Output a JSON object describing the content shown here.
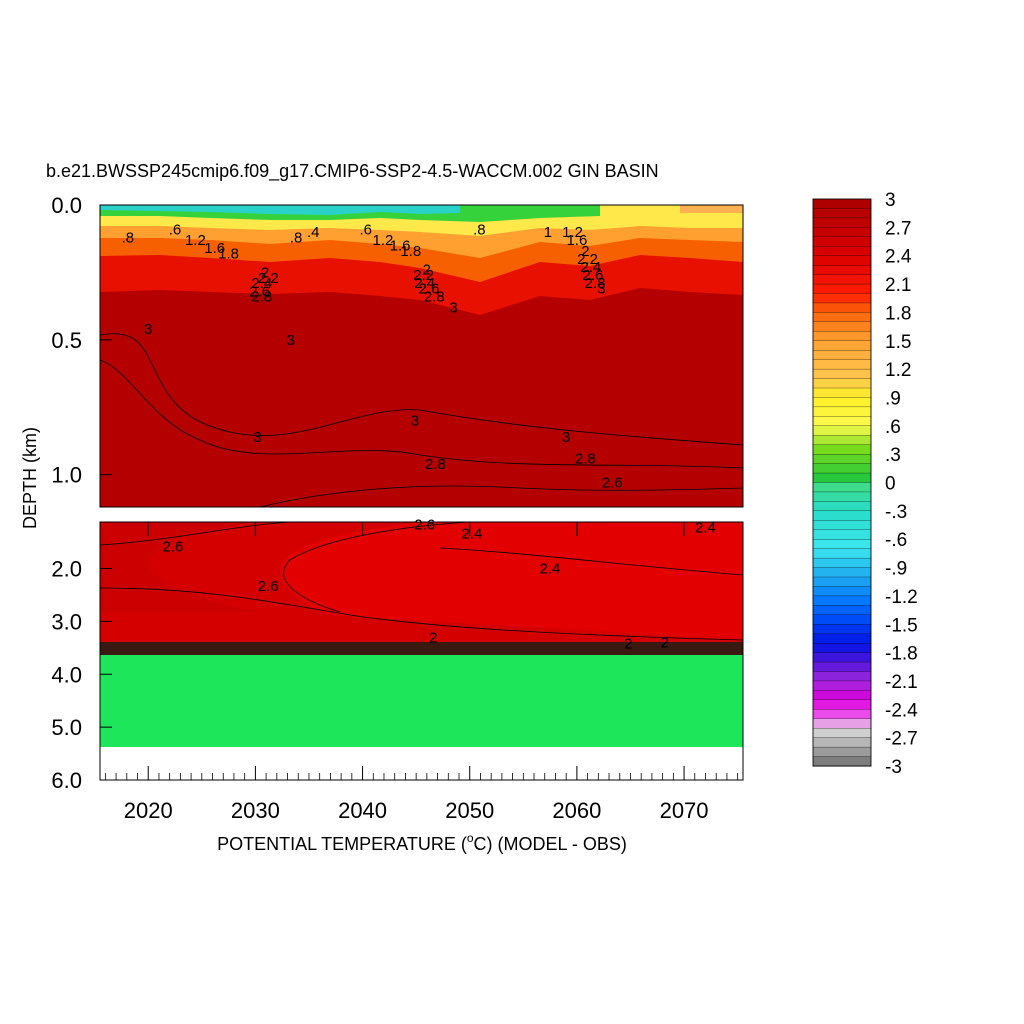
{
  "chart_data": {
    "type": "heatmap",
    "title": "b.e21.BWSSP245cmip6.f09_g17.CMIP6-SSP2-4.5-WACCM.002 GIN BASIN",
    "xlabel_pre": "POTENTIAL TEMPERATURE (",
    "xlabel_sup": "o",
    "xlabel_post": "C) (MODEL - OBS)",
    "ylabel": "DEPTH (km)",
    "xlim": [
      2015.5,
      2075.5
    ],
    "x_ticks": [
      "2020",
      "2030",
      "2040",
      "2050",
      "2060",
      "2070"
    ],
    "upper_panel": {
      "ylim": [
        0.0,
        1.12
      ],
      "y_ticks": [
        "0.0",
        "0.5",
        "1.0"
      ],
      "y_tick_values": [
        0.0,
        0.5,
        1.0
      ]
    },
    "lower_panel": {
      "ylim": [
        1.12,
        6.0
      ],
      "y_ticks": [
        "2.0",
        "3.0",
        "4.0",
        "5.0",
        "6.0"
      ],
      "y_tick_values": [
        2.0,
        3.0,
        4.0,
        5.0,
        6.0
      ]
    },
    "colorbar": {
      "range": [
        -3,
        3
      ],
      "step": 0.1,
      "labels": [
        "3",
        "2.7",
        "2.4",
        "2.1",
        "1.8",
        "1.5",
        "1.2",
        ".9",
        ".6",
        ".3",
        "0",
        "-.3",
        "-.6",
        "-.9",
        "-1.2",
        "-1.5",
        "-1.8",
        "-2.1",
        "-2.4",
        "-2.7",
        "-3"
      ]
    },
    "contour_labels": [
      {
        "text": ".8",
        "x": 2018.1,
        "depth": 0.12
      },
      {
        "text": ".6",
        "x": 2022.5,
        "depth": 0.09
      },
      {
        "text": "1.2",
        "x": 2024.4,
        "depth": 0.13
      },
      {
        "text": "1.6",
        "x": 2026.2,
        "depth": 0.16
      },
      {
        "text": "1.8",
        "x": 2027.5,
        "depth": 0.18
      },
      {
        "text": ".8",
        "x": 2033.8,
        "depth": 0.12
      },
      {
        "text": ".4",
        "x": 2035.4,
        "depth": 0.1
      },
      {
        "text": "2",
        "x": 2030.9,
        "depth": 0.25
      },
      {
        "text": "2.2",
        "x": 2031.2,
        "depth": 0.27
      },
      {
        "text": "2.4",
        "x": 2030.6,
        "depth": 0.29
      },
      {
        "text": "2.6",
        "x": 2030.4,
        "depth": 0.32
      },
      {
        "text": "2.8",
        "x": 2030.6,
        "depth": 0.34
      },
      {
        "text": ".6",
        "x": 2040.3,
        "depth": 0.09
      },
      {
        "text": "1.2",
        "x": 2041.9,
        "depth": 0.13
      },
      {
        "text": "1.6",
        "x": 2043.5,
        "depth": 0.15
      },
      {
        "text": "1.8",
        "x": 2044.5,
        "depth": 0.17
      },
      {
        "text": "2",
        "x": 2046.0,
        "depth": 0.24
      },
      {
        "text": "2.2",
        "x": 2045.7,
        "depth": 0.26
      },
      {
        "text": "2.4",
        "x": 2045.8,
        "depth": 0.29
      },
      {
        "text": "2.6",
        "x": 2046.2,
        "depth": 0.31
      },
      {
        "text": "2.8",
        "x": 2046.7,
        "depth": 0.34
      },
      {
        "text": "3",
        "x": 2048.5,
        "depth": 0.38
      },
      {
        "text": ".8",
        "x": 2050.9,
        "depth": 0.09
      },
      {
        "text": "1",
        "x": 2057.3,
        "depth": 0.1
      },
      {
        "text": "1.2",
        "x": 2059.6,
        "depth": 0.1
      },
      {
        "text": "1.6",
        "x": 2060.0,
        "depth": 0.13
      },
      {
        "text": "2",
        "x": 2060.8,
        "depth": 0.17
      },
      {
        "text": "2.2",
        "x": 2061.0,
        "depth": 0.2
      },
      {
        "text": "2.4",
        "x": 2061.3,
        "depth": 0.23
      },
      {
        "text": "2.6",
        "x": 2061.5,
        "depth": 0.26
      },
      {
        "text": "2.8",
        "x": 2061.7,
        "depth": 0.29
      },
      {
        "text": "3",
        "x": 2062.3,
        "depth": 0.31
      },
      {
        "text": "3",
        "x": 2020.0,
        "depth": 0.46
      },
      {
        "text": "3",
        "x": 2033.3,
        "depth": 0.5
      },
      {
        "text": "3",
        "x": 2030.2,
        "depth": 0.86
      },
      {
        "text": "3",
        "x": 2044.9,
        "depth": 0.8
      },
      {
        "text": "3",
        "x": 2059.0,
        "depth": 0.86
      },
      {
        "text": "2.8",
        "x": 2046.8,
        "depth": 0.96
      },
      {
        "text": "2.8",
        "x": 2060.8,
        "depth": 0.94
      },
      {
        "text": "2.6",
        "x": 2063.3,
        "depth": 1.03
      },
      {
        "text": "2.6",
        "x": 2022.3,
        "depth": 1.58
      },
      {
        "text": "2.6",
        "x": 2045.8,
        "depth": 1.17
      },
      {
        "text": "2.4",
        "x": 2050.2,
        "depth": 1.34
      },
      {
        "text": "2.4",
        "x": 2072.0,
        "depth": 1.22
      },
      {
        "text": "2.4",
        "x": 2057.5,
        "depth": 2.0
      },
      {
        "text": "2.6",
        "x": 2031.2,
        "depth": 2.33
      },
      {
        "text": "2",
        "x": 2046.6,
        "depth": 3.3
      },
      {
        "text": "2",
        "x": 2064.8,
        "depth": 3.42
      },
      {
        "text": "2",
        "x": 2068.2,
        "depth": 3.4
      }
    ]
  }
}
